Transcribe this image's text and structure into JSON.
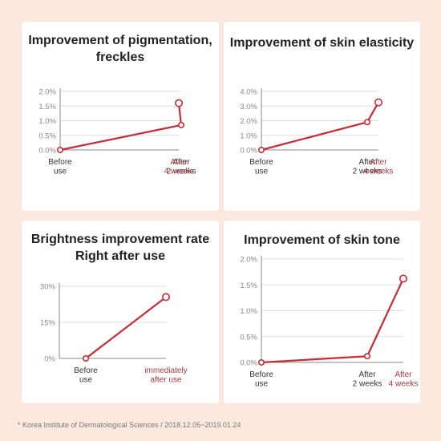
{
  "colors": {
    "background": "#fbe9df",
    "card": "#ffffff",
    "line": "#cc2a36",
    "axis": "#888888",
    "grid": "#dddddd",
    "tick_text": "#888888",
    "label_text": "#333333",
    "highlight_label": "#b0373f"
  },
  "footnote": "* Korea Institute of Dermatological Sciences / 2018.12.05~2019.01.24",
  "chart_data": [
    {
      "type": "line",
      "title": "Improvement of pigmentation,\nfreckles",
      "categories": [
        "Before\nuse",
        "After\n2 weeks",
        "After\n4 weeks"
      ],
      "highlight_index": 2,
      "y_ticks": [
        "0.0%",
        "0.5%",
        "1.0%",
        "1.5%",
        "2.0%"
      ],
      "ylim": [
        0,
        2.0
      ],
      "unit": "%",
      "series": [
        {
          "values": [
            0,
            0.85,
            1.6
          ]
        }
      ],
      "grid": true
    },
    {
      "type": "line",
      "title": "Improvement of skin elasticity",
      "categories": [
        "Before\nuse",
        "After\n2 weeks",
        "After\n4 weeks"
      ],
      "highlight_index": 2,
      "y_ticks": [
        "0.0%",
        "1.0%",
        "2.0%",
        "3.0%",
        "4.0%"
      ],
      "ylim": [
        0,
        4.0
      ],
      "unit": "%",
      "series": [
        {
          "values": [
            0,
            1.9,
            3.25
          ]
        }
      ],
      "grid": true
    },
    {
      "type": "line",
      "title": "Brightness improvement rate\nRight after use",
      "categories": [
        "Before\nuse",
        "immediately\nafter use"
      ],
      "highlight_index": 1,
      "y_ticks": [
        "0%",
        "15%",
        "30%"
      ],
      "ylim": [
        0,
        30
      ],
      "unit": "%",
      "series": [
        {
          "values": [
            0,
            25.5
          ]
        }
      ],
      "grid": true
    },
    {
      "type": "line",
      "title": "Improvement of skin tone",
      "categories": [
        "Before\nuse",
        "After\n2 weeks",
        "After\n4 weeks"
      ],
      "highlight_index": 2,
      "y_ticks": [
        "0.0%",
        "0.5%",
        "1.0%",
        "1.5%",
        "2.0%"
      ],
      "ylim": [
        0,
        2.0
      ],
      "unit": "%",
      "series": [
        {
          "values": [
            0,
            0.12,
            1.62
          ]
        }
      ],
      "grid": true
    }
  ]
}
